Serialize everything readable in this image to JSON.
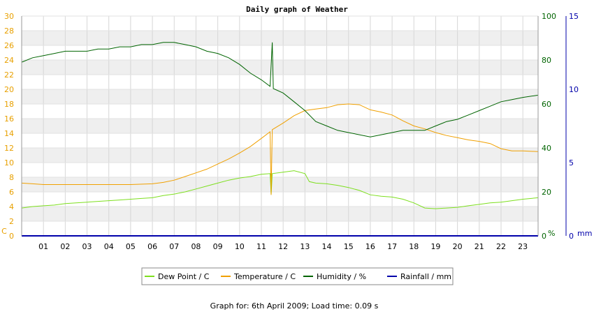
{
  "chart_data": {
    "type": "line",
    "title": "Daily graph of Weather",
    "footer": "Graph for: 6th April 2009; Load time: 0.09 s",
    "x_ticks": [
      "01",
      "02",
      "03",
      "04",
      "05",
      "06",
      "07",
      "08",
      "09",
      "10",
      "11",
      "12",
      "13",
      "14",
      "15",
      "16",
      "17",
      "18",
      "19",
      "20",
      "21",
      "22",
      "23"
    ],
    "xlim": [
      0,
      23.7
    ],
    "grid": true,
    "legend_position": "bottom",
    "axes": {
      "left": {
        "unit": "C",
        "ylim": [
          0,
          30
        ],
        "ticks": [
          0,
          2,
          4,
          6,
          8,
          10,
          12,
          14,
          16,
          18,
          20,
          22,
          24,
          26,
          28,
          30
        ],
        "color": "#e8a000"
      },
      "right1": {
        "unit": "%",
        "ylim": [
          0,
          100
        ],
        "ticks": [
          0,
          20,
          40,
          60,
          80,
          100
        ],
        "color": "#006400"
      },
      "right2": {
        "unit": "mm",
        "ylim": [
          0,
          15
        ],
        "ticks": [
          0,
          5,
          10,
          15
        ],
        "color": "#0000aa"
      }
    },
    "series": [
      {
        "name": "Dew Point / C",
        "axis": "left",
        "color": "#7ddf1e",
        "points": [
          [
            0,
            3.8
          ],
          [
            0.5,
            4.0
          ],
          [
            1,
            4.1
          ],
          [
            1.5,
            4.2
          ],
          [
            2,
            4.4
          ],
          [
            2.5,
            4.5
          ],
          [
            3,
            4.6
          ],
          [
            3.5,
            4.7
          ],
          [
            4,
            4.8
          ],
          [
            4.5,
            4.9
          ],
          [
            5,
            5.0
          ],
          [
            5.5,
            5.1
          ],
          [
            6,
            5.2
          ],
          [
            6.5,
            5.5
          ],
          [
            7,
            5.7
          ],
          [
            7.5,
            6.0
          ],
          [
            8,
            6.4
          ],
          [
            8.5,
            6.8
          ],
          [
            9,
            7.2
          ],
          [
            9.5,
            7.6
          ],
          [
            10,
            7.9
          ],
          [
            10.5,
            8.1
          ],
          [
            11,
            8.4
          ],
          [
            11.4,
            8.5
          ],
          [
            11.45,
            5.6
          ],
          [
            11.5,
            8.5
          ],
          [
            12,
            8.7
          ],
          [
            12.5,
            8.9
          ],
          [
            13,
            8.5
          ],
          [
            13.2,
            7.4
          ],
          [
            13.5,
            7.2
          ],
          [
            14,
            7.1
          ],
          [
            14.5,
            6.9
          ],
          [
            15,
            6.6
          ],
          [
            15.5,
            6.2
          ],
          [
            16,
            5.6
          ],
          [
            16.5,
            5.4
          ],
          [
            17,
            5.3
          ],
          [
            17.5,
            5.0
          ],
          [
            18,
            4.5
          ],
          [
            18.5,
            3.8
          ],
          [
            19,
            3.7
          ],
          [
            19.5,
            3.8
          ],
          [
            20,
            3.9
          ],
          [
            20.5,
            4.1
          ],
          [
            21,
            4.3
          ],
          [
            21.5,
            4.5
          ],
          [
            22,
            4.6
          ],
          [
            22.5,
            4.8
          ],
          [
            23,
            5.0
          ],
          [
            23.7,
            5.2
          ]
        ]
      },
      {
        "name": "Temperature / C",
        "axis": "left",
        "color": "#f0a000",
        "points": [
          [
            0,
            7.2
          ],
          [
            0.5,
            7.1
          ],
          [
            1,
            7.0
          ],
          [
            2,
            7.0
          ],
          [
            3,
            7.0
          ],
          [
            4,
            7.0
          ],
          [
            5,
            7.0
          ],
          [
            6,
            7.1
          ],
          [
            6.5,
            7.3
          ],
          [
            7,
            7.6
          ],
          [
            7.5,
            8.1
          ],
          [
            8,
            8.6
          ],
          [
            8.5,
            9.1
          ],
          [
            9,
            9.8
          ],
          [
            9.5,
            10.5
          ],
          [
            10,
            11.3
          ],
          [
            10.5,
            12.2
          ],
          [
            11,
            13.3
          ],
          [
            11.4,
            14.2
          ],
          [
            11.45,
            5.6
          ],
          [
            11.5,
            14.5
          ],
          [
            12,
            15.4
          ],
          [
            12.5,
            16.4
          ],
          [
            13,
            17.1
          ],
          [
            13.5,
            17.3
          ],
          [
            14,
            17.5
          ],
          [
            14.5,
            17.9
          ],
          [
            15,
            18.0
          ],
          [
            15.5,
            17.9
          ],
          [
            16,
            17.2
          ],
          [
            16.5,
            16.9
          ],
          [
            17,
            16.5
          ],
          [
            17.5,
            15.7
          ],
          [
            18,
            15.0
          ],
          [
            18.5,
            14.6
          ],
          [
            19,
            14.1
          ],
          [
            19.5,
            13.7
          ],
          [
            20,
            13.4
          ],
          [
            20.5,
            13.1
          ],
          [
            21,
            12.9
          ],
          [
            21.5,
            12.6
          ],
          [
            22,
            11.9
          ],
          [
            22.5,
            11.6
          ],
          [
            23,
            11.6
          ],
          [
            23.7,
            11.5
          ]
        ]
      },
      {
        "name": "Humidity / %",
        "axis": "right1",
        "color": "#006400",
        "points": [
          [
            0,
            79
          ],
          [
            0.5,
            81
          ],
          [
            1,
            82
          ],
          [
            1.5,
            83
          ],
          [
            2,
            84
          ],
          [
            2.5,
            84
          ],
          [
            3,
            84
          ],
          [
            3.5,
            85
          ],
          [
            4,
            85
          ],
          [
            4.5,
            86
          ],
          [
            5,
            86
          ],
          [
            5.5,
            87
          ],
          [
            6,
            87
          ],
          [
            6.5,
            88
          ],
          [
            7,
            88
          ],
          [
            7.5,
            87
          ],
          [
            8,
            86
          ],
          [
            8.5,
            84
          ],
          [
            9,
            83
          ],
          [
            9.5,
            81
          ],
          [
            10,
            78
          ],
          [
            10.5,
            74
          ],
          [
            11,
            71
          ],
          [
            11.4,
            68
          ],
          [
            11.5,
            88
          ],
          [
            11.55,
            67
          ],
          [
            12,
            65
          ],
          [
            12.5,
            61
          ],
          [
            13,
            57
          ],
          [
            13.5,
            52
          ],
          [
            14,
            50
          ],
          [
            14.5,
            48
          ],
          [
            15,
            47
          ],
          [
            15.5,
            46
          ],
          [
            16,
            45
          ],
          [
            16.5,
            46
          ],
          [
            17,
            47
          ],
          [
            17.5,
            48
          ],
          [
            18,
            48
          ],
          [
            18.5,
            48
          ],
          [
            19,
            50
          ],
          [
            19.5,
            52
          ],
          [
            20,
            53
          ],
          [
            20.5,
            55
          ],
          [
            21,
            57
          ],
          [
            21.5,
            59
          ],
          [
            22,
            61
          ],
          [
            22.5,
            62
          ],
          [
            23,
            63
          ],
          [
            23.7,
            64
          ]
        ]
      },
      {
        "name": "Rainfall / mm",
        "axis": "right2",
        "color": "#0000aa",
        "points": [
          [
            0,
            0
          ],
          [
            23.7,
            0
          ]
        ]
      }
    ]
  }
}
